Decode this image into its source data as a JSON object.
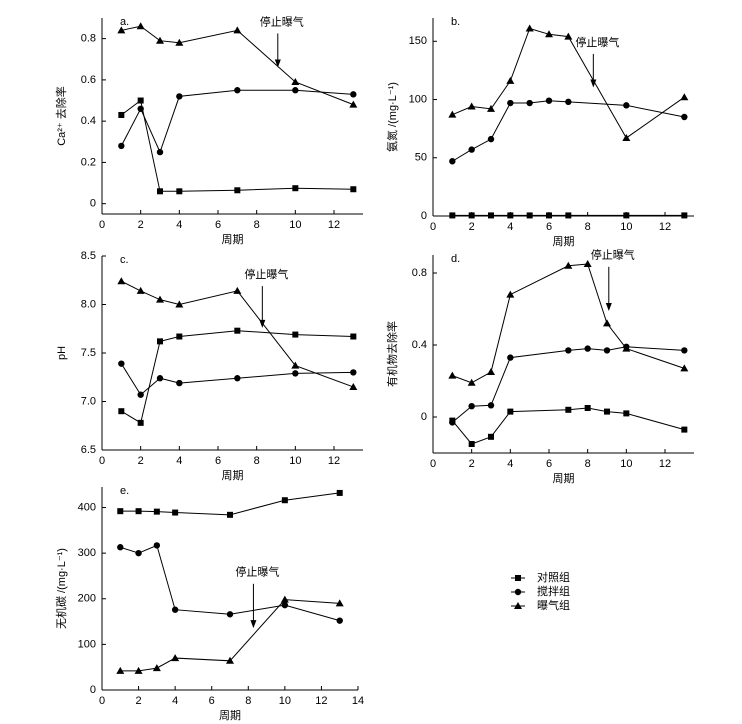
{
  "chart_data": [
    {
      "type": "line",
      "panel": "a.",
      "xlabel": "周期",
      "ylabel": "Ca²⁺ 去除率",
      "annotation": "停止曝气",
      "xlim": [
        0,
        13.5
      ],
      "xticks": [
        0,
        2,
        4,
        6,
        8,
        10,
        12
      ],
      "ylim": [
        -0.05,
        0.9
      ],
      "yticks": [
        0,
        0.2,
        0.4,
        0.6,
        0.8
      ],
      "series": [
        {
          "marker": "square",
          "x": [
            1,
            2,
            3,
            4,
            7,
            10,
            13
          ],
          "values": [
            0.43,
            0.5,
            0.06,
            0.06,
            0.065,
            0.075,
            0.07
          ]
        },
        {
          "marker": "circle",
          "x": [
            1,
            2,
            3,
            4,
            7,
            10,
            13
          ],
          "values": [
            0.28,
            0.46,
            0.25,
            0.52,
            0.55,
            0.55,
            0.53
          ]
        },
        {
          "marker": "triangle",
          "x": [
            1,
            2,
            3,
            4,
            7,
            10,
            13
          ],
          "values": [
            0.84,
            0.86,
            0.79,
            0.78,
            0.84,
            0.59,
            0.48
          ]
        }
      ]
    },
    {
      "type": "line",
      "panel": "b.",
      "xlabel": "周期",
      "ylabel": "氨氮 /(mg·L⁻¹)",
      "annotation": "停止曝气",
      "xlim": [
        0,
        13.5
      ],
      "xticks": [
        0,
        2,
        4,
        6,
        8,
        10,
        12
      ],
      "ylim": [
        0,
        170
      ],
      "yticks": [
        0,
        50,
        100,
        150
      ],
      "series": [
        {
          "marker": "square",
          "x": [
            1,
            2,
            3,
            4,
            5,
            6,
            7,
            10,
            13
          ],
          "values": [
            0.5,
            0.5,
            0.5,
            0.5,
            0.5,
            0.5,
            0.5,
            0.5,
            0.5
          ]
        },
        {
          "marker": "circle",
          "x": [
            1,
            2,
            3,
            4,
            5,
            6,
            7,
            10,
            13
          ],
          "values": [
            47,
            57,
            66,
            97,
            97,
            99,
            98,
            95,
            85
          ]
        },
        {
          "marker": "triangle",
          "x": [
            1,
            2,
            3,
            4,
            5,
            6,
            7,
            10,
            13
          ],
          "values": [
            87,
            94,
            92,
            116,
            161,
            156,
            154,
            67,
            102
          ]
        }
      ]
    },
    {
      "type": "line",
      "panel": "c.",
      "xlabel": "周期",
      "ylabel": "pH",
      "annotation": "停止曝气",
      "xlim": [
        0,
        13.5
      ],
      "xticks": [
        0,
        2,
        4,
        6,
        8,
        10,
        12
      ],
      "ylim": [
        6.5,
        8.5
      ],
      "yticks": [
        6.5,
        {
          "value": 7,
          "label": "7.0"
        },
        7.5,
        {
          "value": 8,
          "label": "8.0"
        },
        8.5
      ],
      "series": [
        {
          "marker": "square",
          "x": [
            1,
            2,
            3,
            4,
            7,
            10,
            13
          ],
          "values": [
            6.9,
            6.78,
            7.62,
            7.67,
            7.73,
            7.69,
            7.67
          ]
        },
        {
          "marker": "circle",
          "x": [
            1,
            2,
            3,
            4,
            7,
            10,
            13
          ],
          "values": [
            7.39,
            7.07,
            7.24,
            7.19,
            7.24,
            7.29,
            7.3
          ]
        },
        {
          "marker": "triangle",
          "x": [
            1,
            2,
            3,
            4,
            7,
            10,
            13
          ],
          "values": [
            8.24,
            8.14,
            8.05,
            8.0,
            8.14,
            7.37,
            7.15
          ]
        }
      ]
    },
    {
      "type": "line",
      "panel": "d.",
      "xlabel": "周期",
      "ylabel": "有机物去除率",
      "annotation": "停止曝气",
      "xlim": [
        0,
        13.5
      ],
      "xticks": [
        0,
        2,
        4,
        6,
        8,
        10,
        12
      ],
      "ylim": [
        -0.2,
        0.9
      ],
      "yticks": [
        0,
        0.4,
        0.8
      ],
      "series": [
        {
          "marker": "square",
          "x": [
            1,
            2,
            3,
            4,
            7,
            8,
            9,
            10,
            13
          ],
          "values": [
            -0.02,
            -0.15,
            -0.11,
            0.03,
            0.04,
            0.05,
            0.03,
            0.02,
            -0.07
          ]
        },
        {
          "marker": "circle",
          "x": [
            1,
            2,
            3,
            4,
            7,
            8,
            9,
            10,
            13
          ],
          "values": [
            -0.03,
            0.06,
            0.065,
            0.33,
            0.37,
            0.38,
            0.37,
            0.39,
            0.37
          ]
        },
        {
          "marker": "triangle",
          "x": [
            1,
            2,
            3,
            4,
            7,
            8,
            9,
            10,
            13
          ],
          "values": [
            0.23,
            0.19,
            0.25,
            0.68,
            0.84,
            0.85,
            0.52,
            0.38,
            0.27
          ]
        }
      ]
    },
    {
      "type": "line",
      "panel": "e.",
      "xlabel": "周期",
      "ylabel": "无机碳 /(mg·L⁻¹)",
      "annotation": "停止曝气",
      "xlim": [
        0,
        14
      ],
      "xticks": [
        0,
        2,
        4,
        6,
        8,
        10,
        12,
        14
      ],
      "ylim": [
        0,
        445
      ],
      "yticks": [
        0,
        100,
        200,
        300,
        400
      ],
      "series": [
        {
          "marker": "square",
          "x": [
            1,
            2,
            3,
            4,
            7,
            10,
            13
          ],
          "values": [
            392,
            392,
            391,
            389,
            384,
            416,
            432
          ]
        },
        {
          "marker": "circle",
          "x": [
            1,
            2,
            3,
            4,
            7,
            10,
            13
          ],
          "values": [
            313,
            300,
            317,
            176,
            166,
            186,
            152
          ]
        },
        {
          "marker": "triangle",
          "x": [
            1,
            2,
            3,
            4,
            7,
            10,
            13
          ],
          "values": [
            42,
            42,
            48,
            70,
            64,
            198,
            190
          ]
        }
      ]
    }
  ],
  "legend": [
    {
      "name": "对照组",
      "marker": "square"
    },
    {
      "name": "搅拌组",
      "marker": "circle"
    },
    {
      "name": "曝气组",
      "marker": "triangle"
    }
  ]
}
